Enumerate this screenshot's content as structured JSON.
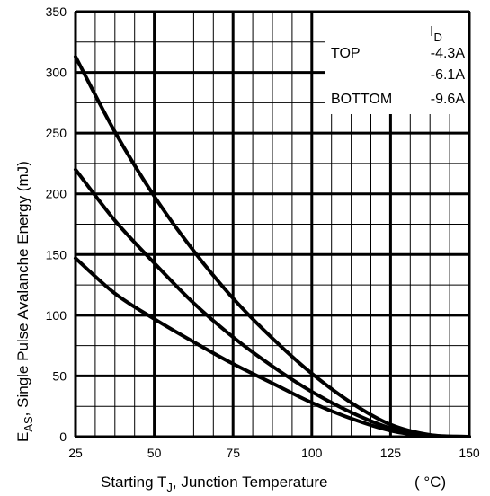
{
  "chart_data": {
    "type": "line",
    "title": "",
    "xlabel": "Starting T",
    "xlabel_sub": "J",
    "xlabel_tail": ", Junction Temperature",
    "xunit": "( °C)",
    "ylabel": "E",
    "ylabel_sub": "AS",
    "ylabel_tail": ", Single Pulse Avalanche Energy (mJ)",
    "xlim": [
      25,
      150
    ],
    "ylim": [
      0,
      350
    ],
    "x_ticks": [
      "25",
      "50",
      "75",
      "100",
      "125",
      "150"
    ],
    "y_ticks": [
      "0",
      "50",
      "100",
      "150",
      "200",
      "250",
      "300",
      "350"
    ],
    "grid": true,
    "legend": {
      "header_main": "I",
      "header_sub": "D",
      "position": "top-right",
      "entries": [
        {
          "label": "TOP",
          "value": "-4.3A"
        },
        {
          "label": "",
          "value": "-6.1A"
        },
        {
          "label": "BOTTOM",
          "value": "-9.6A"
        }
      ]
    },
    "x": [
      25,
      37.5,
      50,
      62.5,
      75,
      87.5,
      100,
      112.5,
      125,
      137.5,
      150
    ],
    "series": [
      {
        "name": "-4.3A",
        "values": [
          313,
          251,
          198,
          153,
          114,
          81,
          52,
          28,
          10,
          1.5,
          0
        ]
      },
      {
        "name": "-6.1A",
        "values": [
          220,
          178,
          143,
          110,
          82,
          58,
          37,
          20,
          7,
          1,
          0
        ]
      },
      {
        "name": "-9.6A",
        "values": [
          147,
          118,
          97,
          78,
          60,
          44,
          28,
          15,
          5,
          0.5,
          0
        ]
      }
    ]
  }
}
